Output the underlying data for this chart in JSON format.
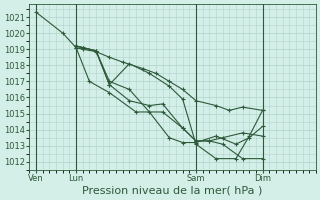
{
  "xlabel": "Pression niveau de la mer( hPa )",
  "bg_color": "#d4eee8",
  "grid_color": "#b0d4cc",
  "line_color": "#2d5a3a",
  "ylim": [
    1011.5,
    1021.8
  ],
  "yticks": [
    1012,
    1013,
    1014,
    1015,
    1016,
    1017,
    1018,
    1019,
    1020,
    1021
  ],
  "xtick_labels": [
    "Ven",
    "Lun",
    "Sam",
    "Dim"
  ],
  "xtick_positions": [
    0,
    6,
    24,
    34
  ],
  "xlim": [
    -1,
    42
  ],
  "lines": [
    {
      "x": [
        0,
        4,
        6,
        8,
        11,
        15,
        19,
        22,
        24,
        26,
        28,
        31,
        34
      ],
      "y": [
        1021.3,
        1020.0,
        1019.1,
        1017.0,
        1016.3,
        1015.1,
        1015.1,
        1014.1,
        1013.3,
        1013.3,
        1013.1,
        1012.2,
        1012.2
      ]
    },
    {
      "x": [
        6,
        7,
        9,
        11,
        13,
        16,
        18,
        20,
        22,
        24,
        27,
        29,
        31,
        34
      ],
      "y": [
        1019.1,
        1019.0,
        1018.85,
        1018.5,
        1018.2,
        1017.8,
        1017.5,
        1017.0,
        1016.5,
        1015.8,
        1015.5,
        1015.2,
        1015.4,
        1015.2
      ]
    },
    {
      "x": [
        6,
        7,
        9,
        11,
        14,
        17,
        19,
        22,
        24,
        26,
        28,
        31,
        34
      ],
      "y": [
        1019.2,
        1019.1,
        1018.9,
        1016.8,
        1015.8,
        1015.5,
        1015.6,
        1014.1,
        1013.3,
        1013.3,
        1013.5,
        1013.8,
        1013.6
      ]
    },
    {
      "x": [
        6,
        7,
        9,
        11,
        14,
        17,
        20,
        22,
        24,
        27,
        30,
        32,
        34
      ],
      "y": [
        1019.2,
        1019.1,
        1018.9,
        1017.0,
        1016.5,
        1015.1,
        1013.5,
        1013.2,
        1013.2,
        1013.6,
        1013.1,
        1013.5,
        1014.2
      ]
    },
    {
      "x": [
        6,
        7,
        9,
        11,
        14,
        17,
        20,
        22,
        24,
        27,
        30,
        32,
        34
      ],
      "y": [
        1019.2,
        1019.1,
        1018.9,
        1016.8,
        1018.1,
        1017.5,
        1016.7,
        1015.9,
        1013.1,
        1012.2,
        1012.2,
        1013.6,
        1015.2
      ]
    }
  ],
  "vline_positions": [
    0,
    6,
    24,
    34
  ],
  "font_color": "#2d5a3a",
  "tick_fontsize": 6,
  "xlabel_fontsize": 8
}
